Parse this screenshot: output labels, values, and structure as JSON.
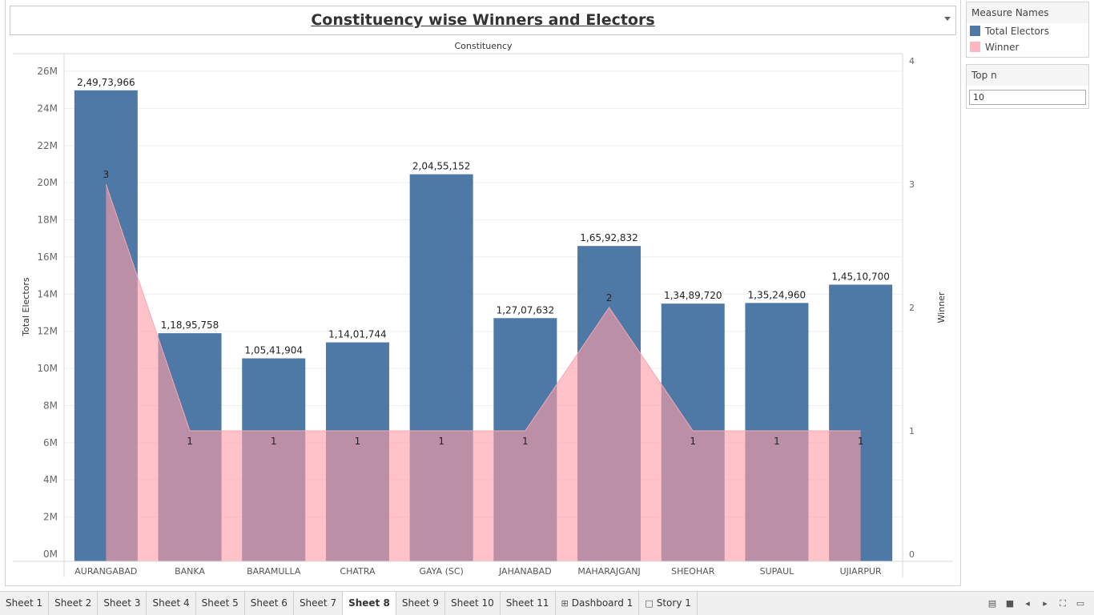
{
  "chart_data": {
    "type": "bar",
    "title": "Constituency wise Winners and Electors",
    "header": "Constituency",
    "categories": [
      "AURANGABAD",
      "BANKA",
      "BARAMULLA",
      "CHATRA",
      "GAYA (SC)",
      "JAHANABAD",
      "MAHARAJGANJ",
      "SHEOHAR",
      "SUPAUL",
      "UJIARPUR"
    ],
    "series": [
      {
        "name": "Total Electors",
        "type": "bar",
        "axis": "left",
        "color": "#4e79a7",
        "values": [
          24973966,
          11895758,
          10541904,
          11401744,
          20455152,
          12707632,
          16592832,
          13489720,
          13524960,
          14510700
        ],
        "labels": [
          "2,49,73,966",
          "1,18,95,758",
          "1,05,41,904",
          "1,14,01,744",
          "2,04,55,152",
          "1,27,07,632",
          "1,65,92,832",
          "1,34,89,720",
          "1,35,24,960",
          "1,45,10,700"
        ]
      },
      {
        "name": "Winner",
        "type": "area",
        "axis": "right",
        "color": "#ff9da7",
        "values": [
          3,
          1,
          1,
          1,
          1,
          1,
          2,
          1,
          1,
          1
        ],
        "labels": [
          "3",
          "1",
          "1",
          "1",
          "1",
          "1",
          "2",
          "1",
          "1",
          "1"
        ]
      }
    ],
    "ylabel": "Total Electors",
    "y2label": "Winner",
    "ylim": [
      0,
      26000000
    ],
    "y2lim": [
      0,
      4
    ],
    "yticks": [
      {
        "value": 0,
        "label": "0M"
      },
      {
        "value": 2000000,
        "label": "2M"
      },
      {
        "value": 4000000,
        "label": "4M"
      },
      {
        "value": 6000000,
        "label": "6M"
      },
      {
        "value": 8000000,
        "label": "8M"
      },
      {
        "value": 10000000,
        "label": "10M"
      },
      {
        "value": 12000000,
        "label": "12M"
      },
      {
        "value": 14000000,
        "label": "14M"
      },
      {
        "value": 16000000,
        "label": "16M"
      },
      {
        "value": 18000000,
        "label": "18M"
      },
      {
        "value": 20000000,
        "label": "20M"
      },
      {
        "value": 22000000,
        "label": "22M"
      },
      {
        "value": 24000000,
        "label": "24M"
      },
      {
        "value": 26000000,
        "label": "26M"
      }
    ],
    "y2ticks": [
      {
        "value": 0,
        "label": "0"
      },
      {
        "value": 1,
        "label": "1"
      },
      {
        "value": 2,
        "label": "2"
      },
      {
        "value": 3,
        "label": "3"
      },
      {
        "value": 4,
        "label": "4"
      }
    ],
    "grid": true
  },
  "legend": {
    "title": "Measure Names",
    "items": [
      {
        "label": "Total Electors",
        "color": "#4e79a7"
      },
      {
        "label": "Winner",
        "color": "#ffb6c1"
      }
    ]
  },
  "filter": {
    "title": "Top n",
    "value": "10"
  },
  "tabs": [
    {
      "label": "Sheet 1",
      "icon": "",
      "active": false
    },
    {
      "label": "Sheet 2",
      "icon": "",
      "active": false
    },
    {
      "label": "Sheet 3",
      "icon": "",
      "active": false
    },
    {
      "label": "Sheet 4",
      "icon": "",
      "active": false
    },
    {
      "label": "Sheet 5",
      "icon": "",
      "active": false
    },
    {
      "label": "Sheet 6",
      "icon": "",
      "active": false
    },
    {
      "label": "Sheet 7",
      "icon": "",
      "active": false
    },
    {
      "label": "Sheet 8",
      "icon": "",
      "active": true
    },
    {
      "label": "Sheet 9",
      "icon": "",
      "active": false
    },
    {
      "label": "Sheet 10",
      "icon": "",
      "active": false
    },
    {
      "label": "Sheet 11",
      "icon": "",
      "active": false
    },
    {
      "label": "Dashboard 1",
      "icon": "dashboard-icon",
      "active": false
    },
    {
      "label": "Story 1",
      "icon": "story-icon",
      "active": false
    }
  ],
  "tab_controls": [
    "show-filmstrip-icon",
    "show-tabs-icon",
    "previous-sheet-icon",
    "next-sheet-icon",
    "fullscreen-icon",
    "presentation-mode-icon"
  ]
}
